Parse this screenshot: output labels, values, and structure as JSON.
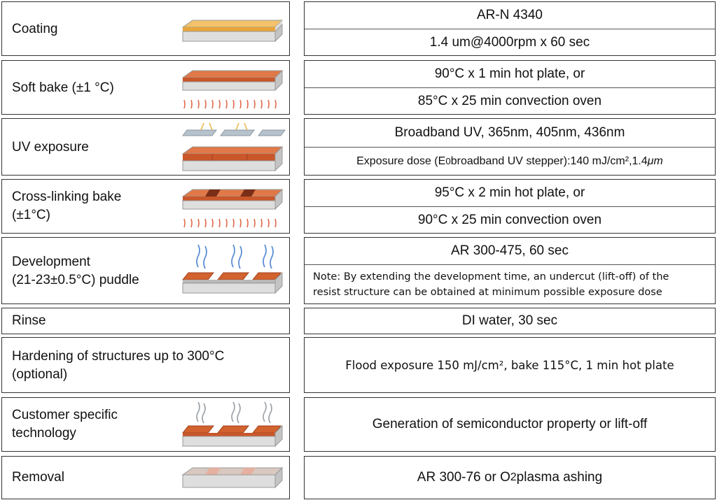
{
  "steps": [
    {
      "label": "Coating",
      "icon": "coated-substrate-icon",
      "details": [
        "AR-N 4340",
        "1.4 um@4000rpm x 60 sec"
      ]
    },
    {
      "label": "Soft bake (±1 °C)",
      "icon": "hot-plate-bake-icon",
      "details": [
        "90°C x 1 min hot plate, or",
        "85°C x 25 min convection oven"
      ]
    },
    {
      "label": "UV exposure",
      "icon": "mask-exposure-icon",
      "details": [
        "Broadband UV, 365nm, 405nm, 436nm"
      ],
      "dose": {
        "prefix": "Exposure dose (E",
        "sub": "0",
        "suffix": " broadband UV stepper):140 mJ/cm²,1.4 ",
        "unit": "μm"
      }
    },
    {
      "label_lines": [
        "Cross-linking bake",
        "(±1°C)"
      ],
      "icon": "cross-link-bake-icon",
      "details": [
        "95°C x 2 min hot plate, or",
        "90°C x 25 min convection oven"
      ]
    },
    {
      "label_lines": [
        "Development",
        "(21-23±0.5°C) puddle"
      ],
      "icon": "development-puddle-icon",
      "details": [
        "AR 300-475, 60 sec"
      ],
      "note_lines": [
        "Note: By extending the development time, an undercut (lift-off) of the",
        "resist structure can be obtained at minimum possible exposure dose"
      ]
    },
    {
      "label": "Rinse",
      "details": [
        "DI water, 30 sec"
      ]
    },
    {
      "label_lines": [
        "Hardening of structures up to 300°C",
        "(optional)"
      ],
      "details": [
        "Flood exposure 150 mJ/cm², bake 115°C, 1 min hot plate"
      ]
    },
    {
      "label_lines": [
        "Customer specific",
        "technology"
      ],
      "icon": "etching-process-icon",
      "details": [
        "Generation of semiconductor property or lift-off"
      ]
    },
    {
      "label": "Removal",
      "icon": "stripped-substrate-icon",
      "removal": {
        "prefix": "AR 300-76 or O",
        "sub": "2",
        "suffix": " plasma ashing"
      }
    }
  ],
  "colors": {
    "resist_yellow": "#f0b44a",
    "resist_orange": "#d2622e",
    "substrate": "#d9d9d9",
    "arrow_red": "#e06a4a",
    "arrow_blue": "#5b8fd6",
    "arrow_gray": "#9aa0a6"
  }
}
